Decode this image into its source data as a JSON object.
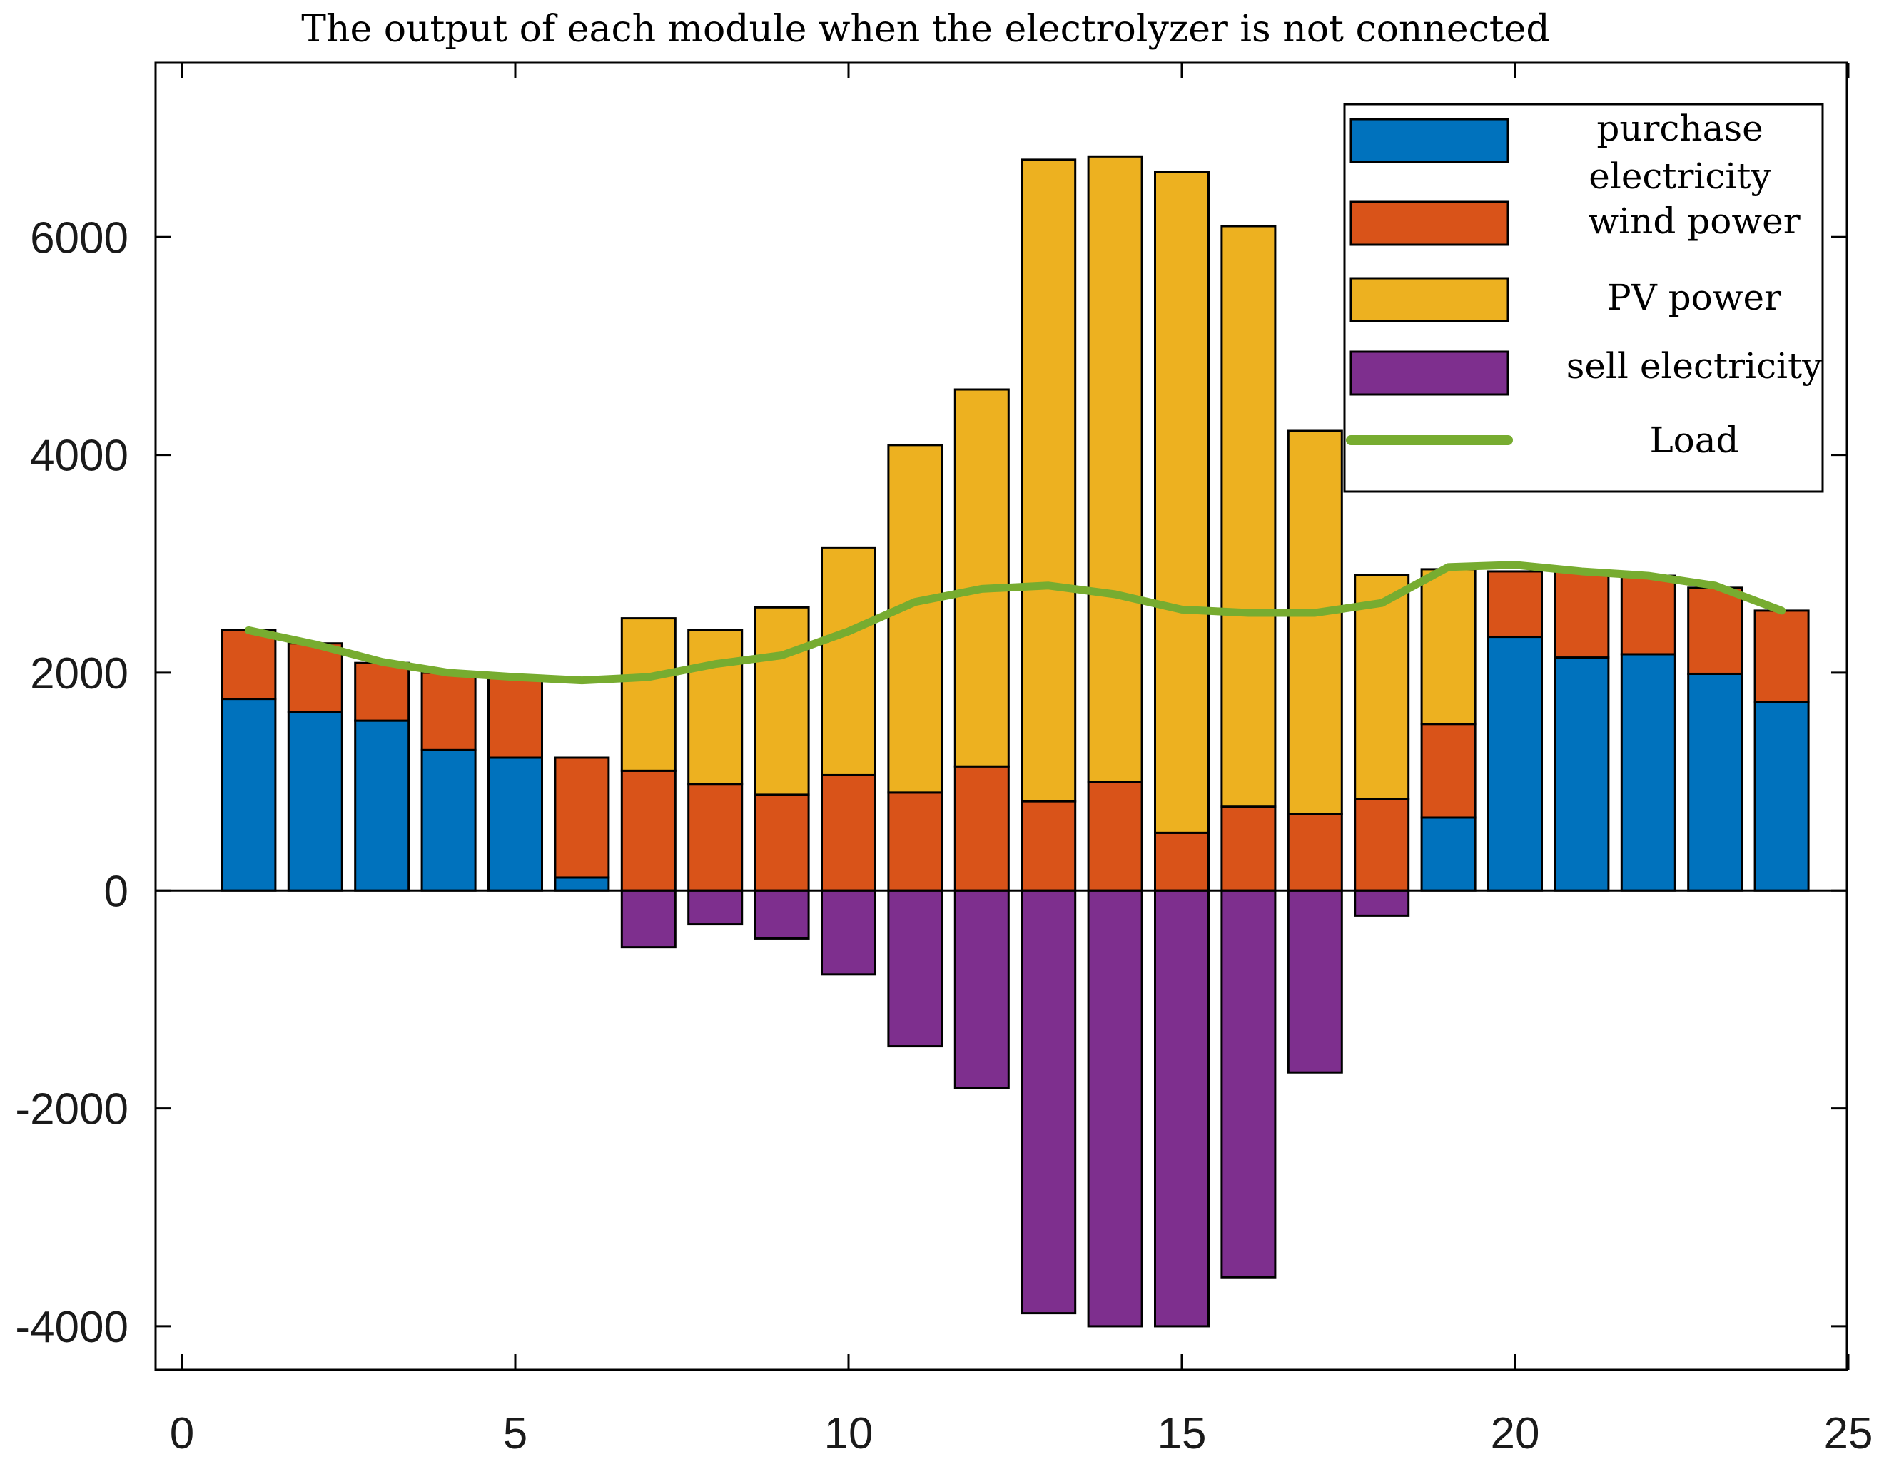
{
  "chart_data": {
    "type": "bar",
    "stacked": true,
    "title": "The output of each module when the electrolyzer is not connected",
    "xlabel": "",
    "ylabel": "",
    "xlim": [
      0,
      25
    ],
    "ylim": [
      -4400,
      7600
    ],
    "xticks": [
      0,
      5,
      10,
      15,
      20,
      25
    ],
    "yticks": [
      -4000,
      -2000,
      0,
      2000,
      4000,
      6000
    ],
    "x": [
      1,
      2,
      3,
      4,
      5,
      6,
      7,
      8,
      9,
      10,
      11,
      12,
      13,
      14,
      15,
      16,
      17,
      18,
      19,
      20,
      21,
      22,
      23,
      24
    ],
    "series": [
      {
        "name": "purchase electricity",
        "color": "#0072BD",
        "values": [
          1760,
          1640,
          1560,
          1290,
          1220,
          120,
          0,
          0,
          0,
          0,
          0,
          0,
          0,
          0,
          0,
          0,
          0,
          0,
          670,
          2330,
          2140,
          2170,
          1990,
          1730
        ]
      },
      {
        "name": "wind power",
        "color": "#D95319",
        "values": [
          630,
          630,
          530,
          710,
          740,
          1100,
          1100,
          980,
          880,
          1060,
          900,
          1140,
          820,
          1000,
          530,
          770,
          700,
          840,
          860,
          600,
          800,
          720,
          790,
          840
        ]
      },
      {
        "name": "PV power",
        "color": "#EDB120",
        "values": [
          0,
          0,
          0,
          0,
          0,
          0,
          1400,
          1410,
          1720,
          2090,
          3190,
          3460,
          5890,
          5740,
          6070,
          5330,
          3520,
          2060,
          1420,
          0,
          0,
          0,
          0,
          0
        ]
      },
      {
        "name": "sell electricity",
        "color": "#7E2F8E",
        "values": [
          0,
          0,
          0,
          0,
          0,
          0,
          -520,
          -310,
          -440,
          -770,
          -1430,
          -1810,
          -3880,
          -4000,
          -4000,
          -3550,
          -1670,
          -230,
          0,
          0,
          0,
          0,
          0,
          0
        ]
      }
    ],
    "line": {
      "name": "Load",
      "color": "#77AC30",
      "values": [
        2390,
        2260,
        2100,
        2000,
        1960,
        1930,
        1960,
        2080,
        2160,
        2380,
        2650,
        2770,
        2800,
        2720,
        2580,
        2550,
        2550,
        2640,
        2970,
        2990,
        2930,
        2890,
        2800,
        2570
      ]
    },
    "legend_entries": [
      "purchase electricity",
      "wind power",
      "PV power",
      "sell electricity",
      "Load"
    ],
    "legend_position": "top-right",
    "grid": false
  }
}
